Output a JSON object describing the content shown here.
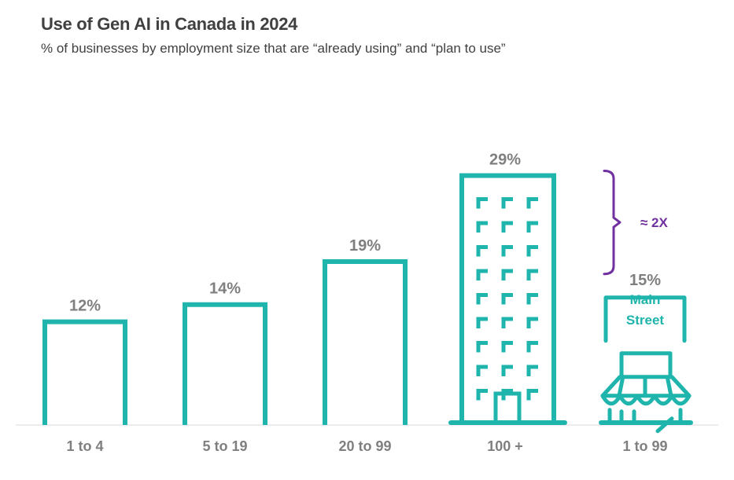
{
  "colors": {
    "bar": "#1fb5ac",
    "label": "#7f7f7f",
    "title": "#404040",
    "annotation": "#7030a0",
    "axis": "#d9d9d9"
  },
  "chart_data": {
    "type": "bar",
    "title": "Use of Gen AI in Canada in 2024",
    "subtitle": "% of businesses by employment size that are “already using” and “plan to use”",
    "unit": "%",
    "categories": [
      "1 to 4",
      "5 to 19",
      "20 to 99",
      "100 +",
      "1 to 99"
    ],
    "values": [
      12,
      14,
      19,
      29,
      15
    ],
    "value_labels": [
      "12%",
      "14%",
      "19%",
      "29%",
      "15%"
    ],
    "bar_icons": [
      "bar",
      "bar",
      "bar",
      "office-building-icon",
      "storefront-icon"
    ],
    "ylim": [
      0,
      29
    ],
    "storefront_sign": [
      "Main",
      "Street"
    ],
    "annotation": {
      "text": "≈ 2X",
      "between": [
        "100 +",
        "1 to 99"
      ]
    }
  }
}
